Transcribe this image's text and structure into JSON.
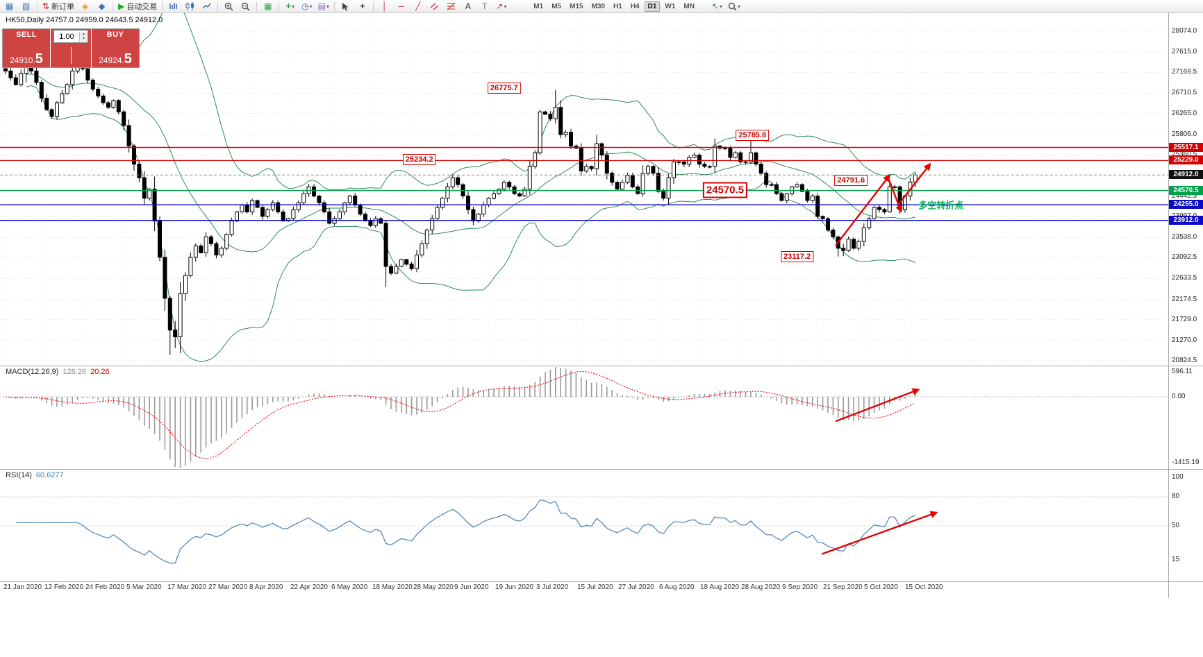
{
  "window": {
    "symbol_info": "HK50,Daily 24757.0 24959.0 24643.5 24912.0"
  },
  "toolbar": {
    "new_order_label": "新订单",
    "autotrading_label": "自动交易",
    "timeframes": [
      "M1",
      "M5",
      "M15",
      "M30",
      "H1",
      "H4",
      "D1",
      "W1",
      "MN"
    ],
    "active_timeframe": "D1",
    "buttons": [
      {
        "name": "new-chart",
        "glyph": "▦",
        "color": "#3a6db5"
      },
      {
        "name": "profiles",
        "glyph": "▧",
        "color": "#3a6db5"
      },
      {
        "name": "sep"
      },
      {
        "name": "new-order",
        "glyph": "⇅",
        "color": "#cc2222",
        "label": "新订单"
      },
      {
        "name": "metaeditor",
        "glyph": "◈",
        "color": "#dd9922"
      },
      {
        "name": "market-watch",
        "glyph": "◆",
        "color": "#3a6db5"
      },
      {
        "name": "sep"
      },
      {
        "name": "autotrading",
        "glyph": "▶",
        "color": "#1faa1f",
        "label": "自动交易"
      },
      {
        "name": "sep"
      },
      {
        "name": "chart-bars",
        "svg": "bars"
      },
      {
        "name": "chart-candles",
        "svg": "candles"
      },
      {
        "name": "chart-line",
        "svg": "line"
      },
      {
        "name": "sep"
      },
      {
        "name": "zoom-in",
        "svg": "zoomin"
      },
      {
        "name": "zoom-out",
        "svg": "zoomout"
      },
      {
        "name": "sep"
      },
      {
        "name": "tile-windows",
        "glyph": "▦",
        "color": "#2f9e44"
      },
      {
        "name": "sep"
      },
      {
        "name": "indicators",
        "glyph": "+",
        "color": "#1f9e3d",
        "caret": true
      },
      {
        "name": "periods",
        "glyph": "◷",
        "color": "#3a6db5",
        "caret": true
      },
      {
        "name": "templates",
        "glyph": "▤",
        "color": "#8a63b8",
        "caret": true
      },
      {
        "name": "sep"
      },
      {
        "name": "cursor",
        "svg": "cursor"
      },
      {
        "name": "crosshair",
        "glyph": "+",
        "color": "#333333"
      },
      {
        "name": "sep"
      },
      {
        "name": "vertical-line",
        "glyph": "│",
        "color": "#bb3333"
      },
      {
        "name": "horizontal-line",
        "glyph": "─",
        "color": "#bb3333"
      },
      {
        "name": "trend-line",
        "glyph": "╱",
        "color": "#bb3333"
      },
      {
        "name": "equidistant-channel",
        "svg": "channel"
      },
      {
        "name": "fibonacci",
        "svg": "fibo"
      },
      {
        "name": "text",
        "glyph": "A",
        "color": "#333333"
      },
      {
        "name": "text-label",
        "glyph": "T",
        "color": "#777777"
      },
      {
        "name": "arrows",
        "glyph": "↗",
        "color": "#bb3333",
        "caret": true
      }
    ],
    "right_buttons": [
      {
        "name": "object-pointer",
        "glyph": "↖",
        "color": "#2f9e44",
        "caret": true
      },
      {
        "name": "find-symbol",
        "svg": "mag",
        "caret": true
      }
    ]
  },
  "trade_panel": {
    "sell_label": "SELL",
    "buy_label": "BUY",
    "volume": "1.00",
    "sell_price_main": "24910.",
    "sell_price_big": "5",
    "buy_price_main": "24924.",
    "buy_price_big": "5",
    "panel_color": "#cf4343"
  },
  "indicators": {
    "macd_name": "MACD(12,26,9)",
    "macd_value": "126.26",
    "macd_signal": "20.26",
    "rsi_name": "RSI(14)",
    "rsi_value": "60.6277"
  },
  "chart_data": {
    "type": "candlestick",
    "symbol": "HK50",
    "timeframe": "Daily",
    "ohlc_line": {
      "open": 24757.0,
      "high": 24959.0,
      "low": 24643.5,
      "close": 24912.0
    },
    "first_open": 27250,
    "closes": [
      27200,
      27050,
      26900,
      27150,
      27300,
      27200,
      26950,
      26600,
      26350,
      26200,
      26500,
      26700,
      26900,
      27200,
      27400,
      27250,
      27000,
      26800,
      26650,
      26500,
      26400,
      26550,
      26300,
      26000,
      25550,
      25150,
      24850,
      24400,
      24600,
      23900,
      23100,
      22200,
      21500,
      21350,
      22300,
      22700,
      23100,
      23350,
      23200,
      23550,
      23400,
      23150,
      23300,
      23600,
      23900,
      24100,
      24250,
      24100,
      24350,
      24200,
      24000,
      24150,
      24300,
      24100,
      23900,
      23950,
      24150,
      24300,
      24500,
      24650,
      24450,
      24300,
      24100,
      23850,
      23950,
      24100,
      24300,
      24450,
      24250,
      24050,
      23900,
      23800,
      23950,
      23850,
      22900,
      22750,
      22900,
      23050,
      22950,
      22850,
      23150,
      23400,
      23700,
      23950,
      24200,
      24400,
      24650,
      24850,
      24700,
      24450,
      24150,
      23900,
      24050,
      24250,
      24400,
      24500,
      24600,
      24750,
      24650,
      24500,
      24450,
      24600,
      25100,
      25400,
      26300,
      26250,
      26150,
      26400,
      25800,
      25850,
      25550,
      25500,
      25000,
      25100,
      25050,
      25600,
      25350,
      24950,
      24750,
      24600,
      24750,
      24900,
      24650,
      24500,
      24950,
      25100,
      24950,
      24550,
      24400,
      24850,
      25200,
      25200,
      25150,
      25300,
      25350,
      25150,
      25100,
      25100,
      25550,
      25500,
      25500,
      25300,
      25400,
      25200,
      25200,
      25400,
      25150,
      24950,
      24700,
      24700,
      24500,
      24350,
      24500,
      24650,
      24700,
      24550,
      24350,
      24450,
      24000,
      23950,
      23700,
      23550,
      23300,
      23250,
      23500,
      23300,
      23450,
      23750,
      23950,
      24200,
      24150,
      24100,
      24650,
      24650,
      24150,
      24450,
      24757,
      24912
    ],
    "wick_overrides": {
      "4": [
        27550,
        26950
      ],
      "14": [
        27600,
        27150
      ],
      "32": [
        22250,
        20950
      ],
      "33": [
        21700,
        21100
      ],
      "74": [
        23900,
        22450
      ],
      "104": [
        26350,
        25350
      ],
      "107": [
        26780,
        26050
      ],
      "145": [
        25790,
        25150
      ],
      "162": [
        23580,
        23117
      ],
      "163": [
        23400,
        23124
      ],
      "172": [
        24791,
        24080
      ],
      "174": [
        24680,
        24050
      ],
      "177": [
        24959,
        24643
      ]
    },
    "bollinger": {
      "period": 20,
      "deviation": 2,
      "color": "#2e8b57"
    },
    "price_gridlines": [
      28074.0,
      27615.0,
      27169.5,
      26710.5,
      26265.0,
      25806.0,
      25360.5,
      24901.5,
      24442.5,
      23997.0,
      23538.0,
      23092.5,
      22633.5,
      22174.5,
      21729.0,
      21270.0,
      20824.5
    ],
    "hidden_gridline_labels": [
      24901.5
    ],
    "current_price": 24912.0,
    "levels": [
      {
        "price": 25517.1,
        "color": "#d40000"
      },
      {
        "price": 25229.0,
        "color": "#d40000"
      },
      {
        "price": 24570.5,
        "color": "#00a14a"
      },
      {
        "price": 24255.0,
        "color": "#0a0ac8"
      },
      {
        "price": 23912.0,
        "color": "#0a0ac8"
      }
    ],
    "price_badges": [
      {
        "label": "25517.1",
        "price": 25517.1,
        "bg": "#d40000"
      },
      {
        "label": "25229.0",
        "price": 25229.0,
        "bg": "#d40000"
      },
      {
        "label": "24912.0",
        "price": 24912.0,
        "bg": "#111111"
      },
      {
        "label": "24570.5",
        "price": 24570.5,
        "bg": "#00a14a"
      },
      {
        "label": "24255.0",
        "price": 24255.0,
        "bg": "#0a0ac8"
      },
      {
        "label": "23912.0",
        "price": 23912.0,
        "bg": "#0a0ac8"
      }
    ],
    "annotations": [
      {
        "text": "26775.7",
        "i": 97,
        "price": 26815,
        "big": false
      },
      {
        "text": "25234.2",
        "i": 80.5,
        "price": 25245,
        "big": false
      },
      {
        "text": "25785.8",
        "i": 145.3,
        "price": 25790,
        "big": false
      },
      {
        "text": "24570.5",
        "i": 140,
        "price": 24585,
        "big": true
      },
      {
        "text": "24791.6",
        "i": 164.5,
        "price": 24800,
        "big": false
      },
      {
        "text": "23117.2",
        "i": 154,
        "price": 23115,
        "big": false
      }
    ],
    "note": {
      "text": "多空转折点",
      "i": 177.6,
      "price": 24255,
      "color": "#00b050"
    },
    "arrows_main": [
      [
        161.5,
        23360,
        171.9,
        24890
      ],
      [
        171.9,
        24800,
        174.2,
        24120
      ],
      [
        173.5,
        24230,
        179.8,
        25140
      ]
    ],
    "arrows_macd": [
      [
        161.5,
        -490,
        177.5,
        140
      ]
    ],
    "arrows_rsi": [
      [
        158.8,
        21,
        181,
        63.5
      ]
    ],
    "arrow_color": "#e60000",
    "macd": {
      "fast": 12,
      "slow": 26,
      "signal": 9,
      "axis_labels": [
        "596.11",
        "0.00",
        "-1415.19"
      ],
      "axis_values": [
        596.11,
        0,
        -1415.19
      ],
      "hist_color": "#9a9a9a",
      "signal_color": "#ff0000"
    },
    "rsi": {
      "period": 14,
      "color": "#4682b4",
      "axis_labels": [
        "100",
        "80",
        "50",
        "15"
      ],
      "axis_values": [
        100,
        80,
        50,
        15
      ],
      "levels": [
        80,
        50
      ]
    },
    "time_labels": [
      "21 Jan 2020",
      "12 Feb 2020",
      "24 Feb 2020",
      "5 Mar 2020",
      "17 Mar 2020",
      "27 Mar 2020",
      "8 Apr 2020",
      "22 Apr 2020",
      "6 May 2020",
      "18 May 2020",
      "28 May 2020",
      "9 Jun 2020",
      "19 Jun 2020",
      "3 Jul 2020",
      "15 Jul 2020",
      "27 Jul 2020",
      "6 Aug 2020",
      "18 Aug 2020",
      "28 Aug 2020",
      "9 Sep 2020",
      "21 Sep 2020",
      "5 Oct 2020",
      "15 Oct 2020"
    ]
  }
}
